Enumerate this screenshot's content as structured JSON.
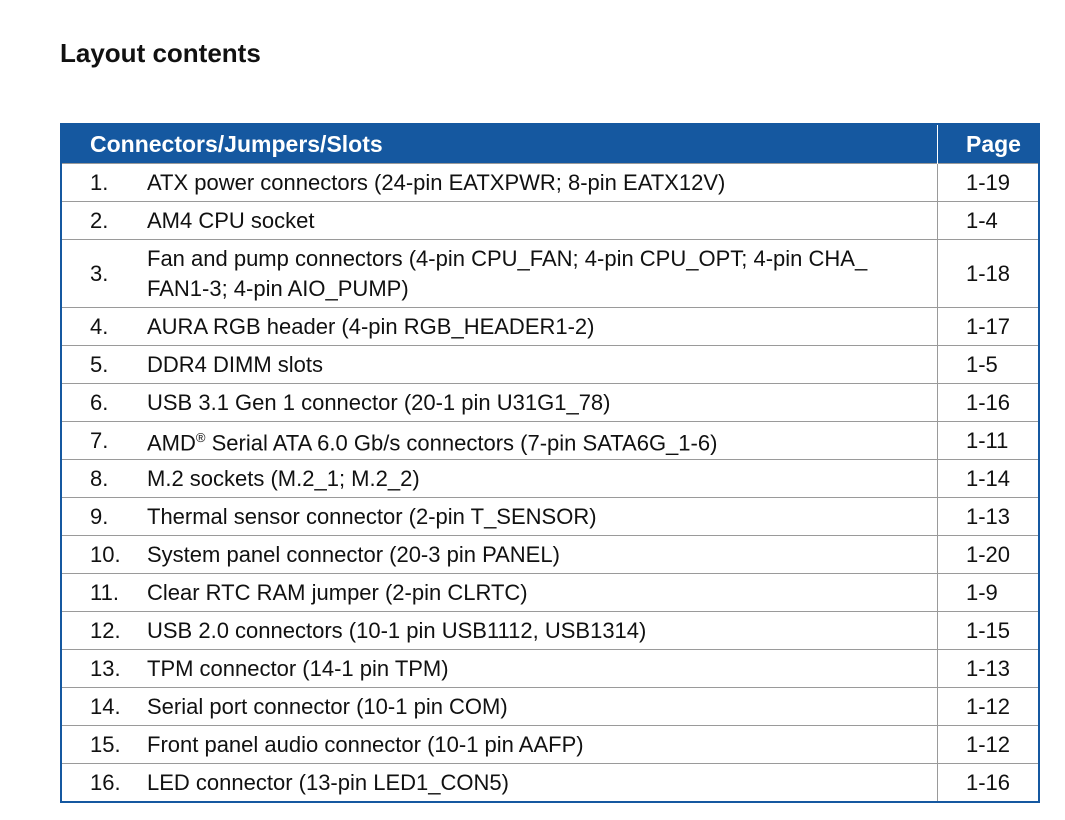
{
  "title": "Layout contents",
  "table": {
    "headers": [
      "Connectors/Jumpers/Slots",
      "Page"
    ],
    "rows": [
      {
        "num": "1.",
        "text": "ATX power connectors (24-pin EATXPWR; 8-pin EATX12V)",
        "page": "1-19"
      },
      {
        "num": "2.",
        "text": "AM4 CPU socket",
        "page": "1-4"
      },
      {
        "num": "3.",
        "text": "Fan and pump connectors (4-pin CPU_FAN; 4-pin CPU_OPT; 4-pin CHA_ FAN1-3; 4-pin AIO_PUMP)",
        "page": "1-18"
      },
      {
        "num": "4.",
        "text": "AURA RGB header (4-pin RGB_HEADER1-2)",
        "page": "1-17"
      },
      {
        "num": "5.",
        "text": "DDR4 DIMM slots",
        "page": "1-5"
      },
      {
        "num": "6.",
        "text": "USB 3.1 Gen 1 connector (20-1 pin U31G1_78)",
        "page": "1-16"
      },
      {
        "num": "7.",
        "text_a": "AMD",
        "sup": "®",
        "text_b": " Serial ATA 6.0 Gb/s connectors (7-pin SATA6G_1-6)",
        "page": "1-11"
      },
      {
        "num": "8.",
        "text": "M.2 sockets (M.2_1; M.2_2)",
        "page": "1-14"
      },
      {
        "num": "9.",
        "text": "Thermal sensor connector (2-pin T_SENSOR)",
        "page": "1-13"
      },
      {
        "num": "10.",
        "text": "System panel connector (20-3 pin PANEL)",
        "page": "1-20"
      },
      {
        "num": "11.",
        "text": "Clear RTC RAM jumper (2-pin CLRTC)",
        "page": "1-9"
      },
      {
        "num": "12.",
        "text": "USB 2.0 connectors (10-1 pin USB1112, USB1314)",
        "page": "1-15"
      },
      {
        "num": "13.",
        "text": "TPM connector (14-1 pin TPM)",
        "page": "1-13"
      },
      {
        "num": "14.",
        "text": "Serial port connector (10-1 pin COM)",
        "page": "1-12"
      },
      {
        "num": "15.",
        "text": "Front panel audio connector (10-1 pin AAFP)",
        "page": "1-12"
      },
      {
        "num": "16.",
        "text": "LED connector (13-pin LED1_CON5)",
        "page": "1-16"
      }
    ]
  },
  "colors": {
    "header_bg": "#1558a0"
  }
}
